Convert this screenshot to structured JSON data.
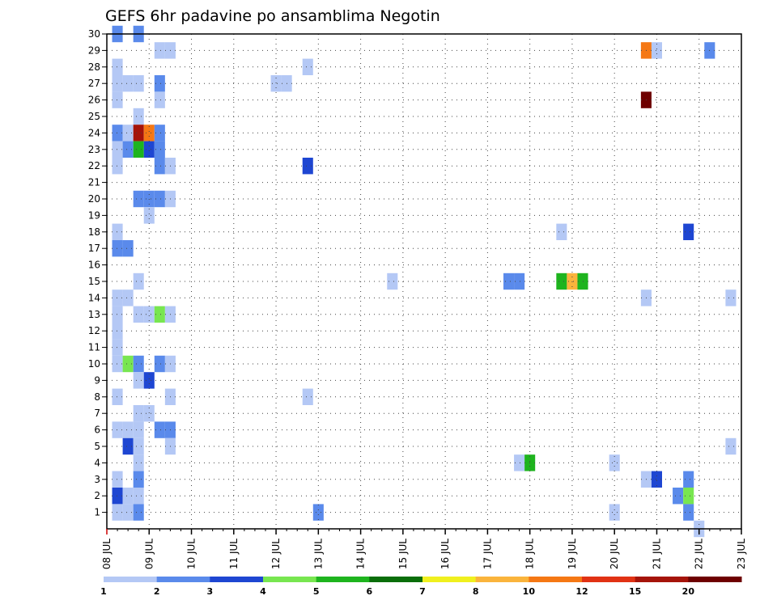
{
  "chart_data": {
    "type": "heatmap",
    "title": "GEFS 6hr padavine po ansamblima Negotin",
    "x_ticks": [
      "08 JUL",
      "09 JUL",
      "10 JUL",
      "11 JUL",
      "12 JUL",
      "13 JUL",
      "14 JUL",
      "15 JUL",
      "16 JUL",
      "17 JUL",
      "18 JUL",
      "19 JUL",
      "20 JUL",
      "21 JUL",
      "22 JUL",
      "23 JUL"
    ],
    "y_ticks": [
      "1",
      "2",
      "3",
      "4",
      "5",
      "6",
      "7",
      "8",
      "9",
      "10",
      "11",
      "12",
      "13",
      "14",
      "15",
      "16",
      "17",
      "18",
      "19",
      "20",
      "21",
      "22",
      "23",
      "24",
      "25",
      "26",
      "27",
      "28",
      "29",
      "30"
    ],
    "x_range": [
      "08 JUL",
      "23 JUL"
    ],
    "y_range": [
      0,
      30
    ],
    "x_step_days": 0.25,
    "grid": true,
    "legend": {
      "placement": "bottom",
      "labels": [
        "1",
        "2",
        "3",
        "4",
        "5",
        "6",
        "7",
        "8",
        "10",
        "12",
        "15",
        "20"
      ],
      "colors": [
        "#b4c8f5",
        "#5a8aeb",
        "#1e46d2",
        "#78e650",
        "#1eb41e",
        "#0a6e0a",
        "#f0f01e",
        "#fab43c",
        "#f57814",
        "#e13214",
        "#a5140a",
        "#6e0000"
      ]
    },
    "bin_edges": [
      1,
      2,
      3,
      4,
      5,
      6,
      7,
      8,
      10,
      12,
      15,
      20
    ],
    "cells": [
      {
        "date": "08 JUL 06Z",
        "member": 30,
        "value": 2.5
      },
      {
        "date": "08 JUL 18Z",
        "member": 30,
        "value": 2.5
      },
      {
        "date": "09 JUL 06Z",
        "member": 29,
        "value": 1.5
      },
      {
        "date": "09 JUL 12Z",
        "member": 29,
        "value": 1.5
      },
      {
        "date": "20 JUL 18Z",
        "member": 29,
        "value": 11
      },
      {
        "date": "21 JUL 00Z",
        "member": 29,
        "value": 1.5
      },
      {
        "date": "22 JUL 06Z",
        "member": 29,
        "value": 2.5
      },
      {
        "date": "08 JUL 06Z",
        "member": 28,
        "value": 1.5
      },
      {
        "date": "12 JUL 18Z",
        "member": 28,
        "value": 1.5
      },
      {
        "date": "08 JUL 06Z",
        "member": 27,
        "value": 1.5
      },
      {
        "date": "08 JUL 12Z",
        "member": 27,
        "value": 1.5
      },
      {
        "date": "08 JUL 18Z",
        "member": 27,
        "value": 1.5
      },
      {
        "date": "09 JUL 06Z",
        "member": 27,
        "value": 2.5
      },
      {
        "date": "12 JUL 00Z",
        "member": 27,
        "value": 1.5
      },
      {
        "date": "12 JUL 06Z",
        "member": 27,
        "value": 1.5
      },
      {
        "date": "08 JUL 06Z",
        "member": 26,
        "value": 1.5
      },
      {
        "date": "09 JUL 06Z",
        "member": 26,
        "value": 1.5
      },
      {
        "date": "20 JUL 18Z",
        "member": 26,
        "value": 25
      },
      {
        "date": "08 JUL 18Z",
        "member": 25,
        "value": 1.5
      },
      {
        "date": "08 JUL 06Z",
        "member": 24,
        "value": 2.5
      },
      {
        "date": "08 JUL 12Z",
        "member": 24,
        "value": 1.5
      },
      {
        "date": "08 JUL 18Z",
        "member": 24,
        "value": 17
      },
      {
        "date": "09 JUL 00Z",
        "member": 24,
        "value": 11
      },
      {
        "date": "09 JUL 06Z",
        "member": 24,
        "value": 2.5
      },
      {
        "date": "08 JUL 06Z",
        "member": 23,
        "value": 1.5
      },
      {
        "date": "08 JUL 12Z",
        "member": 23,
        "value": 2.5
      },
      {
        "date": "08 JUL 18Z",
        "member": 23,
        "value": 5.5
      },
      {
        "date": "09 JUL 00Z",
        "member": 23,
        "value": 3.5
      },
      {
        "date": "09 JUL 06Z",
        "member": 23,
        "value": 2.5
      },
      {
        "date": "08 JUL 06Z",
        "member": 22,
        "value": 1.5
      },
      {
        "date": "09 JUL 06Z",
        "member": 22,
        "value": 2.5
      },
      {
        "date": "09 JUL 12Z",
        "member": 22,
        "value": 1.5
      },
      {
        "date": "12 JUL 18Z",
        "member": 22,
        "value": 3.5
      },
      {
        "date": "08 JUL 18Z",
        "member": 20,
        "value": 2.5
      },
      {
        "date": "09 JUL 00Z",
        "member": 20,
        "value": 2.5
      },
      {
        "date": "09 JUL 06Z",
        "member": 20,
        "value": 2.5
      },
      {
        "date": "09 JUL 12Z",
        "member": 20,
        "value": 1.5
      },
      {
        "date": "09 JUL 00Z",
        "member": 19,
        "value": 1.5
      },
      {
        "date": "08 JUL 06Z",
        "member": 18,
        "value": 1.5
      },
      {
        "date": "18 JUL 18Z",
        "member": 18,
        "value": 1.5
      },
      {
        "date": "21 JUL 18Z",
        "member": 18,
        "value": 3.5
      },
      {
        "date": "08 JUL 06Z",
        "member": 17,
        "value": 2.5
      },
      {
        "date": "08 JUL 12Z",
        "member": 17,
        "value": 2.5
      },
      {
        "date": "08 JUL 18Z",
        "member": 15,
        "value": 1.5
      },
      {
        "date": "14 JUL 18Z",
        "member": 15,
        "value": 1.5
      },
      {
        "date": "17 JUL 12Z",
        "member": 15,
        "value": 2.5
      },
      {
        "date": "17 JUL 18Z",
        "member": 15,
        "value": 2.5
      },
      {
        "date": "18 JUL 18Z",
        "member": 15,
        "value": 5.5
      },
      {
        "date": "19 JUL 00Z",
        "member": 15,
        "value": 9
      },
      {
        "date": "19 JUL 06Z",
        "member": 15,
        "value": 5.5
      },
      {
        "date": "08 JUL 06Z",
        "member": 14,
        "value": 1.5
      },
      {
        "date": "08 JUL 12Z",
        "member": 14,
        "value": 1.5
      },
      {
        "date": "20 JUL 18Z",
        "member": 14,
        "value": 1.5
      },
      {
        "date": "22 JUL 18Z",
        "member": 14,
        "value": 1.5
      },
      {
        "date": "08 JUL 06Z",
        "member": 13,
        "value": 1.5
      },
      {
        "date": "08 JUL 18Z",
        "member": 13,
        "value": 1.5
      },
      {
        "date": "09 JUL 00Z",
        "member": 13,
        "value": 1.5
      },
      {
        "date": "09 JUL 06Z",
        "member": 13,
        "value": 4.5
      },
      {
        "date": "09 JUL 12Z",
        "member": 13,
        "value": 1.5
      },
      {
        "date": "08 JUL 06Z",
        "member": 12,
        "value": 1.5
      },
      {
        "date": "08 JUL 06Z",
        "member": 11,
        "value": 1.5
      },
      {
        "date": "08 JUL 06Z",
        "member": 10,
        "value": 1.5
      },
      {
        "date": "08 JUL 12Z",
        "member": 10,
        "value": 4.5
      },
      {
        "date": "08 JUL 18Z",
        "member": 10,
        "value": 2.5
      },
      {
        "date": "09 JUL 06Z",
        "member": 10,
        "value": 2.5
      },
      {
        "date": "09 JUL 12Z",
        "member": 10,
        "value": 1.5
      },
      {
        "date": "08 JUL 18Z",
        "member": 9,
        "value": 1.5
      },
      {
        "date": "09 JUL 00Z",
        "member": 9,
        "value": 3.5
      },
      {
        "date": "08 JUL 06Z",
        "member": 8,
        "value": 1.5
      },
      {
        "date": "09 JUL 12Z",
        "member": 8,
        "value": 1.5
      },
      {
        "date": "12 JUL 18Z",
        "member": 8,
        "value": 1.5
      },
      {
        "date": "08 JUL 18Z",
        "member": 7,
        "value": 1.5
      },
      {
        "date": "09 JUL 00Z",
        "member": 7,
        "value": 1.5
      },
      {
        "date": "08 JUL 06Z",
        "member": 6,
        "value": 1.5
      },
      {
        "date": "08 JUL 12Z",
        "member": 6,
        "value": 1.5
      },
      {
        "date": "08 JUL 18Z",
        "member": 6,
        "value": 1.5
      },
      {
        "date": "09 JUL 06Z",
        "member": 6,
        "value": 2.5
      },
      {
        "date": "09 JUL 12Z",
        "member": 6,
        "value": 2.5
      },
      {
        "date": "08 JUL 12Z",
        "member": 5,
        "value": 3.5
      },
      {
        "date": "08 JUL 18Z",
        "member": 5,
        "value": 1.5
      },
      {
        "date": "09 JUL 12Z",
        "member": 5,
        "value": 1.5
      },
      {
        "date": "22 JUL 18Z",
        "member": 5,
        "value": 1.5
      },
      {
        "date": "08 JUL 18Z",
        "member": 4,
        "value": 1.5
      },
      {
        "date": "17 JUL 18Z",
        "member": 4,
        "value": 1.5
      },
      {
        "date": "18 JUL 00Z",
        "member": 4,
        "value": 5.5
      },
      {
        "date": "20 JUL 00Z",
        "member": 4,
        "value": 1.5
      },
      {
        "date": "08 JUL 06Z",
        "member": 3,
        "value": 1.5
      },
      {
        "date": "08 JUL 18Z",
        "member": 3,
        "value": 2.5
      },
      {
        "date": "20 JUL 18Z",
        "member": 3,
        "value": 1.5
      },
      {
        "date": "21 JUL 00Z",
        "member": 3,
        "value": 3.5
      },
      {
        "date": "21 JUL 18Z",
        "member": 3,
        "value": 2.5
      },
      {
        "date": "08 JUL 06Z",
        "member": 2,
        "value": 3.5
      },
      {
        "date": "08 JUL 12Z",
        "member": 2,
        "value": 1.5
      },
      {
        "date": "08 JUL 18Z",
        "member": 2,
        "value": 1.5
      },
      {
        "date": "21 JUL 12Z",
        "member": 2,
        "value": 2.5
      },
      {
        "date": "21 JUL 18Z",
        "member": 2,
        "value": 4.5
      },
      {
        "date": "08 JUL 06Z",
        "member": 1,
        "value": 1.5
      },
      {
        "date": "08 JUL 12Z",
        "member": 1,
        "value": 1.5
      },
      {
        "date": "08 JUL 18Z",
        "member": 1,
        "value": 2.5
      },
      {
        "date": "13 JUL 00Z",
        "member": 1,
        "value": 2.5
      },
      {
        "date": "20 JUL 00Z",
        "member": 1,
        "value": 1.5
      },
      {
        "date": "21 JUL 18Z",
        "member": 1,
        "value": 2.5
      },
      {
        "date": "22 JUL 00Z",
        "member": 0,
        "value": 1.5
      }
    ]
  }
}
